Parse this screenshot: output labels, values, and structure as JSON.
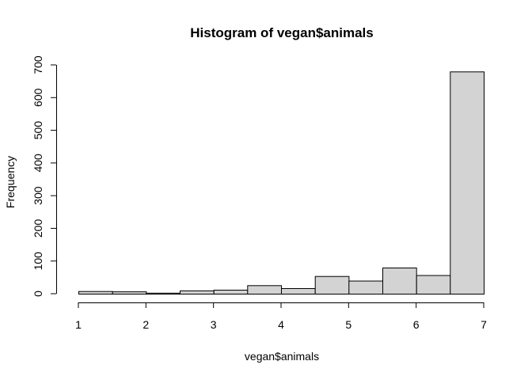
{
  "chart_data": {
    "type": "bar",
    "title": "Histogram of vegan$animals",
    "xlabel": "vegan$animals",
    "ylabel": "Frequency",
    "bin_edges": [
      1,
      1.5,
      2,
      2.5,
      3,
      3.5,
      4,
      4.5,
      5,
      5.5,
      6,
      6.5,
      7
    ],
    "values": [
      8,
      7,
      3,
      10,
      12,
      26,
      17,
      54,
      40,
      80,
      57,
      680
    ],
    "xlim": [
      1,
      7
    ],
    "ylim": [
      0,
      700
    ],
    "x_ticks": [
      "1",
      "2",
      "3",
      "4",
      "5",
      "6",
      "7"
    ],
    "y_ticks": [
      "0",
      "100",
      "200",
      "300",
      "400",
      "500",
      "600",
      "700"
    ],
    "grid": false,
    "colors": {
      "bar_fill": "#d3d3d3",
      "bar_stroke": "#000000"
    }
  }
}
